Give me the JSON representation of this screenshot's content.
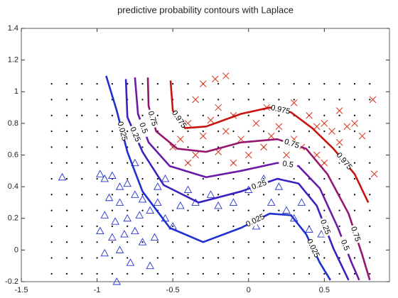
{
  "chart_data": {
    "type": "contour",
    "title": "predictive probability contours with Laplace",
    "xlim": [
      -1.5,
      0.93
    ],
    "ylim": [
      -0.2,
      1.4
    ],
    "xticks": [
      -1.5,
      -1,
      -0.5,
      0,
      0.5
    ],
    "yticks": [
      -0.2,
      0,
      0.2,
      0.4,
      0.6,
      0.8,
      1,
      1.2,
      1.4
    ],
    "series": [
      {
        "name": "0.025",
        "color": "#1f2fd0",
        "x": [
          -0.94,
          -0.87,
          -0.8,
          -0.7,
          -0.52,
          -0.3,
          -0.05,
          0.14,
          0.28,
          0.38,
          0.47,
          0.54
        ],
        "y": [
          1.1,
          0.88,
          0.62,
          0.37,
          0.14,
          0.05,
          0.14,
          0.23,
          0.22,
          0.1,
          -0.08,
          -0.19
        ]
      },
      {
        "name": "0.25",
        "color": "#3a22c0",
        "x": [
          -0.81,
          -0.8,
          -0.7,
          -0.56,
          -0.33,
          -0.05,
          0.19,
          0.33,
          0.45,
          0.56,
          0.66
        ],
        "y": [
          1.08,
          0.84,
          0.62,
          0.41,
          0.3,
          0.37,
          0.45,
          0.42,
          0.28,
          0.01,
          -0.19
        ]
      },
      {
        "name": "0.5",
        "color": "#6a1aa8",
        "x": [
          -0.75,
          -0.73,
          -0.66,
          -0.52,
          -0.28,
          -0.05,
          0.19,
          0.33,
          0.47,
          0.59,
          0.68,
          0.73
        ],
        "y": [
          1.09,
          0.86,
          0.68,
          0.53,
          0.46,
          0.5,
          0.55,
          0.53,
          0.39,
          0.14,
          -0.08,
          -0.19
        ]
      },
      {
        "name": "0.75",
        "color": "#96156e",
        "x": [
          -0.665,
          -0.66,
          -0.61,
          -0.47,
          -0.28,
          -0.05,
          0.19,
          0.38,
          0.52,
          0.66,
          0.75,
          0.8
        ],
        "y": [
          1.09,
          0.91,
          0.75,
          0.64,
          0.62,
          0.68,
          0.7,
          0.64,
          0.48,
          0.23,
          -0.03,
          -0.19
        ]
      },
      {
        "name": "0.975",
        "color": "#c8140f",
        "x": [
          -0.515,
          -0.5,
          -0.42,
          -0.28,
          -0.05,
          0.14,
          0.28,
          0.42,
          0.56,
          0.7,
          0.79
        ],
        "y": [
          1.07,
          0.88,
          0.77,
          0.78,
          0.86,
          0.9,
          0.87,
          0.77,
          0.64,
          0.48,
          0.3
        ]
      }
    ],
    "scatter": [
      {
        "marker": "triangle",
        "color": "#2233cc",
        "x": [
          -1.23,
          -0.98,
          -0.95,
          -0.9,
          -0.85,
          -0.8,
          -0.92,
          -0.85,
          -0.75,
          -0.7,
          -0.95,
          -0.88,
          -0.8,
          -0.72,
          -0.65,
          -0.6,
          -0.55,
          -0.98,
          -0.9,
          -0.82,
          -0.75,
          -0.7,
          -0.62,
          -0.95,
          -0.85,
          -0.78,
          -0.65,
          -0.87,
          -0.5,
          -0.45,
          -0.4,
          -0.35,
          -0.25,
          -0.2,
          -0.1,
          0.0,
          0.05,
          0.15,
          0.2,
          0.25,
          0.3,
          0.35,
          0.4,
          0.48,
          -0.55,
          -0.75,
          -0.6,
          0.1
        ],
        "y": [
          0.46,
          0.48,
          0.45,
          0.47,
          0.4,
          0.42,
          0.33,
          0.3,
          0.35,
          0.32,
          0.22,
          0.18,
          0.2,
          0.22,
          0.25,
          0.3,
          0.2,
          0.12,
          0.08,
          0.1,
          0.12,
          0.05,
          0.08,
          -0.02,
          0.0,
          -0.08,
          -0.1,
          -0.2,
          0.15,
          0.28,
          0.38,
          0.3,
          0.35,
          0.28,
          0.3,
          0.38,
          0.15,
          0.3,
          0.4,
          0.25,
          0.2,
          0.3,
          0.13,
          0.1,
          0.45,
          0.55,
          0.4,
          0.45
        ]
      },
      {
        "marker": "cross",
        "color": "#d8341a",
        "x": [
          -0.15,
          -0.22,
          -0.3,
          -0.35,
          -0.2,
          -0.1,
          -0.25,
          -0.4,
          -0.45,
          -0.3,
          -0.15,
          -0.05,
          0.05,
          0.1,
          0.15,
          0.2,
          0.25,
          0.3,
          0.35,
          0.4,
          0.45,
          0.5,
          0.55,
          0.6,
          0.65,
          0.7,
          0.82,
          0.83,
          0.5,
          0.45,
          -0.2,
          -0.35,
          -0.5,
          -0.4,
          0.0,
          -0.1,
          0.12,
          0.3,
          0.6,
          0.75
        ],
        "y": [
          1.1,
          1.08,
          1.05,
          0.95,
          0.9,
          0.85,
          0.82,
          0.8,
          0.7,
          0.72,
          0.75,
          0.7,
          0.8,
          0.65,
          0.72,
          0.78,
          0.6,
          0.7,
          0.65,
          0.85,
          0.78,
          0.8,
          0.75,
          0.68,
          0.78,
          0.8,
          0.95,
          0.48,
          0.55,
          0.6,
          0.62,
          0.6,
          0.65,
          0.55,
          0.6,
          0.55,
          0.9,
          0.93,
          0.88,
          0.72
        ]
      }
    ],
    "dot_x": [
      -1.3,
      -1.2,
      -1.1,
      -1.0,
      -0.9,
      -0.8,
      -0.7,
      -0.6,
      -0.5,
      -0.4,
      -0.3,
      -0.2,
      -0.1,
      0.0,
      0.1,
      0.2,
      0.3,
      0.4,
      0.5,
      0.6,
      0.7,
      0.8
    ],
    "dot_y": [
      -0.15,
      -0.05,
      0.05,
      0.15,
      0.25,
      0.35,
      0.45,
      0.55,
      0.65,
      0.75,
      0.85,
      0.95,
      1.05
    ]
  }
}
